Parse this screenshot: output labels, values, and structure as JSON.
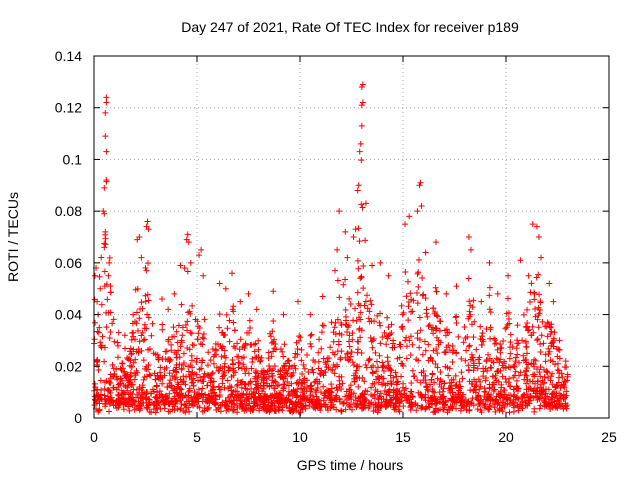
{
  "chart_data": {
    "type": "scatter",
    "title": "Day 247 of 2021, Rate Of TEC Index for receiver p189",
    "xlabel": "GPS time / hours",
    "ylabel": "ROTI / TECUs",
    "xlim": [
      0,
      25
    ],
    "ylim": [
      0,
      0.14
    ],
    "x_ticks": [
      "0",
      "5",
      "10",
      "15",
      "20",
      "25"
    ],
    "y_ticks": [
      "0",
      "0.02",
      "0.04",
      "0.06",
      "0.08",
      "0.1",
      "0.12",
      "0.14"
    ],
    "grid": true,
    "marker": "+",
    "color": "#ff0000",
    "series": [
      {
        "name": "ROTI",
        "points": [
          [
            0.05,
            0.055
          ],
          [
            0.1,
            0.058
          ],
          [
            0.15,
            0.045
          ],
          [
            0.2,
            0.04
          ],
          [
            0.3,
            0.05
          ],
          [
            0.45,
            0.08
          ],
          [
            0.5,
            0.079
          ],
          [
            0.5,
            0.089
          ],
          [
            0.55,
            0.118
          ],
          [
            0.55,
            0.109
          ],
          [
            0.6,
            0.124
          ],
          [
            0.6,
            0.122
          ],
          [
            0.6,
            0.103
          ],
          [
            0.6,
            0.092
          ],
          [
            0.55,
            0.072
          ],
          [
            0.5,
            0.066
          ],
          [
            0.7,
            0.055
          ],
          [
            0.8,
            0.051
          ],
          [
            1.2,
            0.033
          ],
          [
            1.5,
            0.032
          ],
          [
            1.9,
            0.04
          ],
          [
            2.1,
            0.069
          ],
          [
            2.2,
            0.07
          ],
          [
            2.3,
            0.062
          ],
          [
            2.5,
            0.058
          ],
          [
            2.55,
            0.074
          ],
          [
            2.6,
            0.076
          ],
          [
            2.65,
            0.073
          ],
          [
            3.3,
            0.046
          ],
          [
            3.6,
            0.042
          ],
          [
            3.9,
            0.048
          ],
          [
            4.2,
            0.059
          ],
          [
            4.4,
            0.058
          ],
          [
            4.5,
            0.069
          ],
          [
            4.55,
            0.071
          ],
          [
            4.6,
            0.068
          ],
          [
            4.7,
            0.06
          ],
          [
            5.1,
            0.063
          ],
          [
            5.2,
            0.065
          ],
          [
            5.3,
            0.055
          ],
          [
            6.1,
            0.052
          ],
          [
            6.4,
            0.05
          ],
          [
            6.7,
            0.056
          ],
          [
            7.1,
            0.045
          ],
          [
            7.5,
            0.048
          ],
          [
            7.9,
            0.042
          ],
          [
            8.7,
            0.049
          ],
          [
            9.2,
            0.04
          ],
          [
            9.9,
            0.045
          ],
          [
            10.5,
            0.04
          ],
          [
            11.1,
            0.047
          ],
          [
            11.7,
            0.057
          ],
          [
            11.8,
            0.065
          ],
          [
            11.9,
            0.08
          ],
          [
            12.2,
            0.072
          ],
          [
            12.3,
            0.062
          ],
          [
            12.6,
            0.07
          ],
          [
            12.7,
            0.073
          ],
          [
            12.8,
            0.088
          ],
          [
            12.85,
            0.09
          ],
          [
            12.9,
            0.103
          ],
          [
            12.95,
            0.106
          ],
          [
            13.0,
            0.113
          ],
          [
            13.0,
            0.121
          ],
          [
            13.05,
            0.122
          ],
          [
            13.0,
            0.128
          ],
          [
            13.05,
            0.129
          ],
          [
            13.2,
            0.083
          ],
          [
            13.5,
            0.059
          ],
          [
            13.9,
            0.06
          ],
          [
            14.3,
            0.055
          ],
          [
            15.1,
            0.075
          ],
          [
            15.3,
            0.078
          ],
          [
            15.7,
            0.08
          ],
          [
            15.8,
            0.09
          ],
          [
            15.85,
            0.091
          ],
          [
            15.9,
            0.082
          ],
          [
            16.1,
            0.064
          ],
          [
            16.6,
            0.068
          ],
          [
            17.1,
            0.048
          ],
          [
            17.6,
            0.051
          ],
          [
            18.2,
            0.07
          ],
          [
            18.3,
            0.065
          ],
          [
            18.8,
            0.045
          ],
          [
            19.2,
            0.06
          ],
          [
            19.6,
            0.048
          ],
          [
            20.1,
            0.055
          ],
          [
            20.7,
            0.061
          ],
          [
            21.1,
            0.055
          ],
          [
            21.3,
            0.075
          ],
          [
            21.5,
            0.074
          ],
          [
            21.6,
            0.07
          ],
          [
            21.7,
            0.062
          ],
          [
            22.1,
            0.052
          ],
          [
            22.3,
            0.045
          ],
          [
            22.6,
            0.03
          ],
          [
            22.9,
            0.022
          ]
        ]
      }
    ]
  }
}
